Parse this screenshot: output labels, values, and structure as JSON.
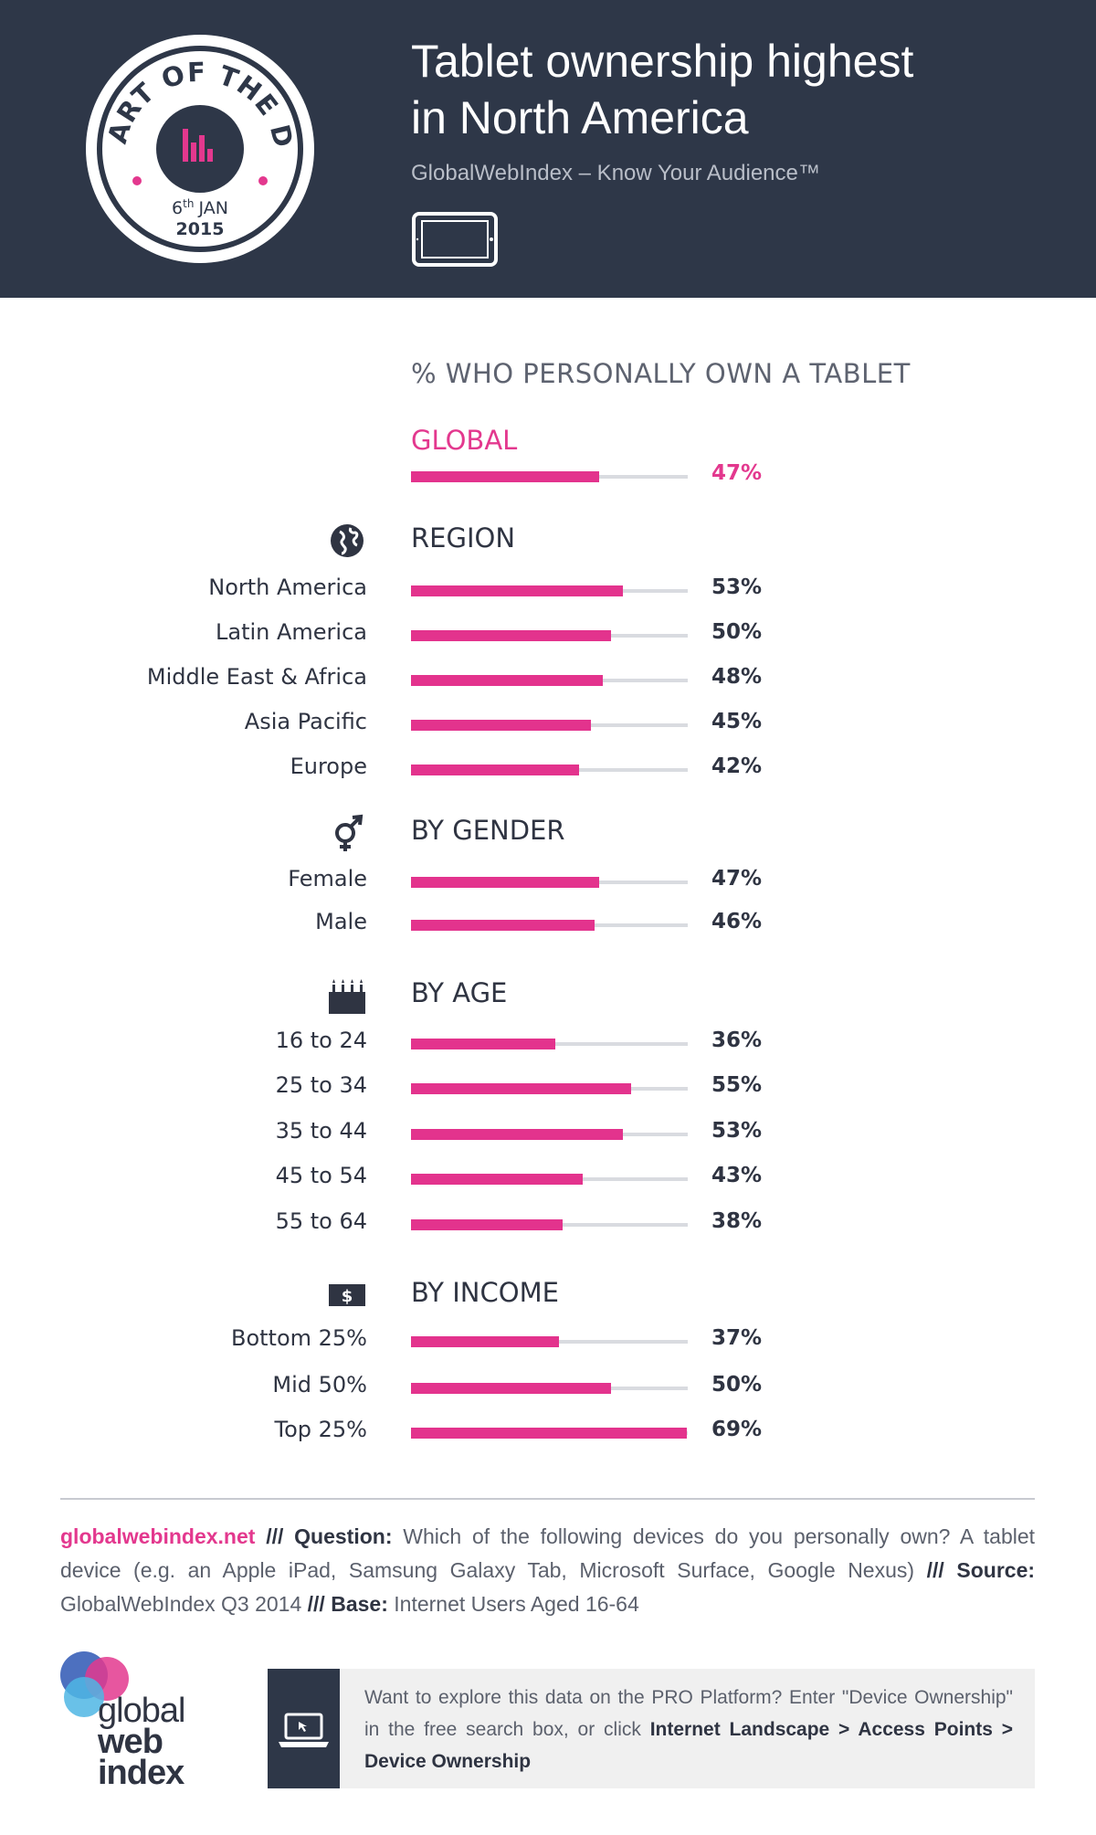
{
  "header": {
    "badge_top_text": "CHART OF THE DAY",
    "badge_date_day": "6",
    "badge_date_suffix": "th",
    "badge_date_month": "JAN",
    "badge_date_year": "2015",
    "title_line1": "Tablet ownership highest",
    "title_line2": "in North America",
    "subtitle": "GlobalWebIndex – Know Your Audience™",
    "tablet_icon": "tablet-icon",
    "colors": {
      "background": "#2e3748",
      "accent": "#e3388e"
    }
  },
  "chart_data": {
    "type": "bar",
    "orientation": "horizontal",
    "title": "% WHO PERSONALLY OWN A TABLET",
    "xlim": [
      0,
      100
    ],
    "unit": "%",
    "bar_color": "#e3338d",
    "track_color": "#d9dbe0",
    "global": {
      "label": "GLOBAL",
      "value": 47,
      "display": "47%"
    },
    "sections": [
      {
        "title": "REGION",
        "icon": "globe-icon",
        "categories": [
          "North America",
          "Latin America",
          "Middle East & Africa",
          "Asia Pacific",
          "Europe"
        ],
        "values": [
          53,
          50,
          48,
          45,
          42
        ],
        "displays": [
          "53%",
          "50%",
          "48%",
          "45%",
          "42%"
        ]
      },
      {
        "title": "BY GENDER",
        "icon": "gender-icon",
        "categories": [
          "Female",
          "Male"
        ],
        "values": [
          47,
          46
        ],
        "displays": [
          "47%",
          "46%"
        ]
      },
      {
        "title": "BY AGE",
        "icon": "birthday-cake-icon",
        "categories": [
          "16 to 24",
          "25 to 34",
          "35 to 44",
          "45 to 54",
          "55 to 64"
        ],
        "values": [
          36,
          55,
          53,
          43,
          38
        ],
        "displays": [
          "36%",
          "55%",
          "53%",
          "43%",
          "38%"
        ]
      },
      {
        "title": "BY INCOME",
        "icon": "dollar-icon",
        "categories": [
          "Bottom 25%",
          "Mid 50%",
          "Top 25%"
        ],
        "values": [
          37,
          50,
          69
        ],
        "displays": [
          "37%",
          "50%",
          "69%"
        ]
      }
    ]
  },
  "footer": {
    "site": "globalwebindex.net",
    "sep": "///",
    "question_label": "Question:",
    "question_text": "Which of the following devices do you personally own? A tablet device (e.g. an Apple iPad, Samsung Galaxy Tab, Microsoft Surface, Google Nexus)",
    "source_label": "Source:",
    "source_text": "GlobalWebIndex Q3 2014",
    "base_label": "Base:",
    "base_text": "Internet Users Aged 16-64",
    "logo_line1": "global",
    "logo_line2": "web",
    "logo_line3": "index",
    "cta_text_1": "Want to explore this data on the PRO Platform? Enter \"Device Ownership\" in the free search box, or click",
    "cta_path": "Internet Landscape > Access Points > Device Ownership",
    "cta_icon": "laptop-icon"
  }
}
